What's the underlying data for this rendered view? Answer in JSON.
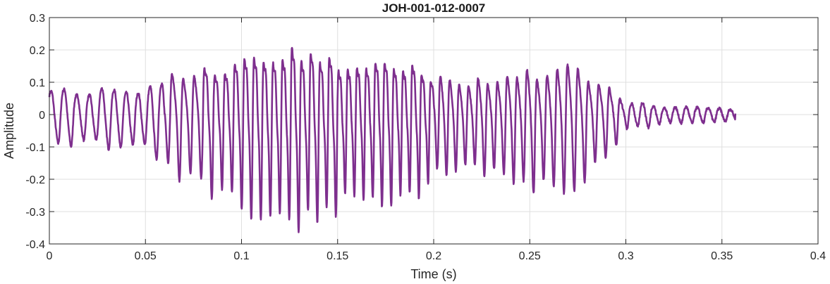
{
  "chart_data": {
    "type": "line",
    "title": "JOH-001-012-0007",
    "xlabel": "Time (s)",
    "ylabel": "Amplitude",
    "xlim": [
      0,
      0.4
    ],
    "ylim": [
      -0.4,
      0.3
    ],
    "xticks": [
      0,
      0.05,
      0.1,
      0.15,
      0.2,
      0.25,
      0.3,
      0.35,
      0.4
    ],
    "xtick_labels": [
      "0",
      "0.05",
      "0.1",
      "0.15",
      "0.2",
      "0.25",
      "0.3",
      "0.35",
      "0.4"
    ],
    "yticks": [
      -0.4,
      -0.3,
      -0.2,
      -0.1,
      0,
      0.1,
      0.2,
      0.3
    ],
    "ytick_labels": [
      "-0.4",
      "-0.3",
      "-0.2",
      "-0.1",
      "0",
      "0.1",
      "0.2",
      "0.3"
    ],
    "grid": true,
    "series_color": "#7e2f8e",
    "signal": {
      "duration_s": 0.357,
      "start_value": 0.045,
      "end_value": 0.003,
      "envelope": [
        {
          "t": 0.0,
          "amp": 0.085
        },
        {
          "t": 0.03,
          "amp": 0.09
        },
        {
          "t": 0.05,
          "amp": 0.095
        },
        {
          "t": 0.06,
          "amp": 0.15
        },
        {
          "t": 0.08,
          "amp": 0.19
        },
        {
          "t": 0.1,
          "amp": 0.23
        },
        {
          "t": 0.115,
          "amp": 0.27
        },
        {
          "t": 0.125,
          "amp": 0.29
        },
        {
          "t": 0.135,
          "amp": 0.26
        },
        {
          "t": 0.16,
          "amp": 0.22
        },
        {
          "t": 0.19,
          "amp": 0.2
        },
        {
          "t": 0.21,
          "amp": 0.15
        },
        {
          "t": 0.23,
          "amp": 0.15
        },
        {
          "t": 0.255,
          "amp": 0.19
        },
        {
          "t": 0.27,
          "amp": 0.215
        },
        {
          "t": 0.29,
          "amp": 0.13
        },
        {
          "t": 0.3,
          "amp": 0.05
        },
        {
          "t": 0.32,
          "amp": 0.028
        },
        {
          "t": 0.357,
          "amp": 0.018
        }
      ],
      "period": [
        {
          "t": 0.0,
          "s": 0.0068
        },
        {
          "t": 0.06,
          "s": 0.006
        },
        {
          "t": 0.1,
          "s": 0.005
        },
        {
          "t": 0.15,
          "s": 0.0048
        },
        {
          "t": 0.2,
          "s": 0.0048
        },
        {
          "t": 0.25,
          "s": 0.0052
        },
        {
          "t": 0.3,
          "s": 0.0056
        },
        {
          "t": 0.357,
          "s": 0.0058
        }
      ],
      "offset": [
        {
          "t": 0.0,
          "v": 0.0
        },
        {
          "t": 0.08,
          "v": -0.01
        },
        {
          "t": 0.12,
          "v": -0.02
        },
        {
          "t": 0.2,
          "v": -0.01
        },
        {
          "t": 0.26,
          "v": -0.02
        },
        {
          "t": 0.3,
          "v": 0.0
        },
        {
          "t": 0.357,
          "v": 0.0
        }
      ]
    }
  }
}
